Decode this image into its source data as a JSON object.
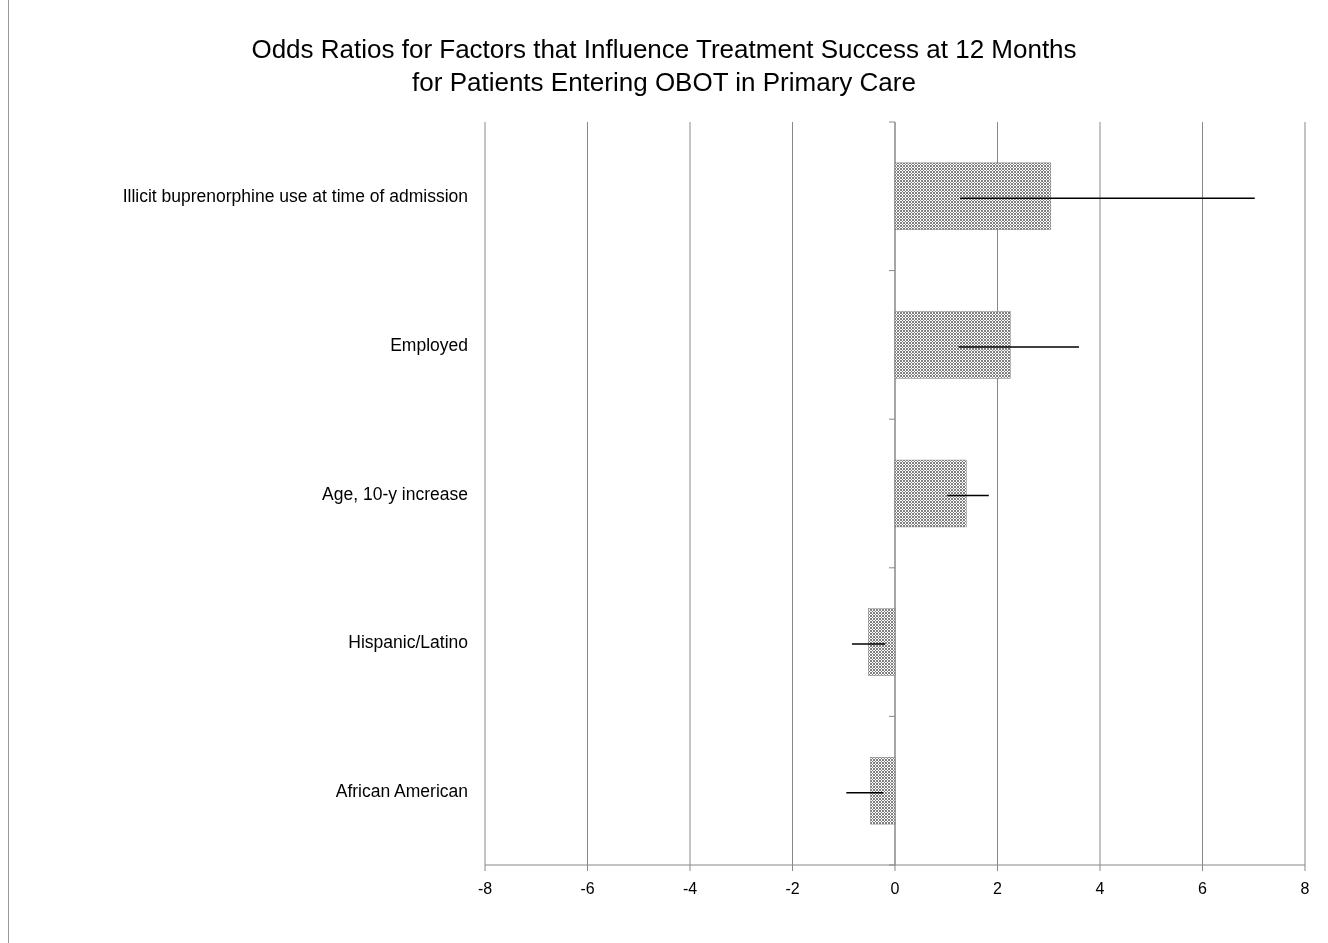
{
  "chart_data": {
    "type": "bar",
    "orientation": "horizontal",
    "title": "Odds Ratios for Factors that Influence Treatment Success at 12 Months\nfor Patients Entering OBOT in Primary Care",
    "categories": [
      "Illicit buprenorphine use at time of admission",
      "Employed",
      "Age, 10-y increase",
      "Hispanic/Latino",
      "African American"
    ],
    "values": [
      3.04,
      2.25,
      1.39,
      -0.52,
      -0.48
    ],
    "errors": [
      [
        1.27,
        7.02
      ],
      [
        1.24,
        3.59
      ],
      [
        1.02,
        1.83
      ],
      [
        -0.84,
        -0.19
      ],
      [
        -0.95,
        -0.23
      ]
    ],
    "color": "#7f7f7f",
    "xlim": [
      -8,
      8
    ],
    "xticks": [
      -8,
      -6,
      -4,
      -2,
      0,
      2,
      4,
      6,
      8
    ],
    "grid": "x"
  }
}
